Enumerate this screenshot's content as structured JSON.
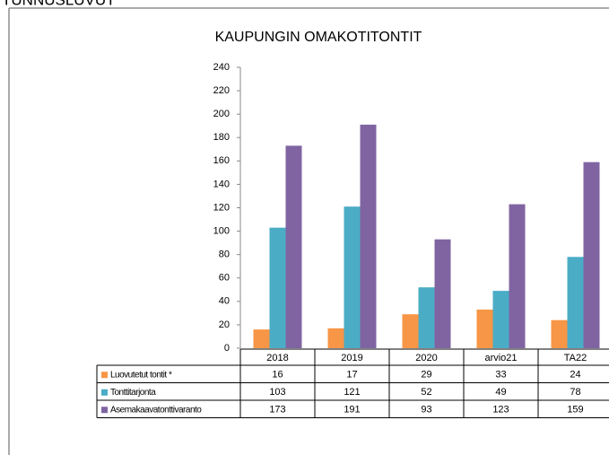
{
  "heading": "TUNNUSLUVUT",
  "chart_data": {
    "type": "bar",
    "title": "KAUPUNGIN  OMAKOTITONTIT",
    "categories": [
      "2018",
      "2019",
      "2020",
      "arvio21",
      "TA22"
    ],
    "series": [
      {
        "name": "Luovutetut tontit  *",
        "color": "#f79646",
        "values": [
          16,
          17,
          29,
          33,
          24
        ]
      },
      {
        "name": "Tonttitarjonta",
        "color": "#4bacc6",
        "values": [
          103,
          121,
          52,
          49,
          78
        ]
      },
      {
        "name": "Asemakaavatonttivaranto",
        "color": "#8064a2",
        "values": [
          173,
          191,
          93,
          123,
          159
        ]
      }
    ],
    "ylim": [
      0,
      240
    ],
    "yticks": [
      0,
      20,
      40,
      60,
      80,
      100,
      120,
      140,
      160,
      180,
      200,
      220,
      240
    ],
    "grid": false
  }
}
